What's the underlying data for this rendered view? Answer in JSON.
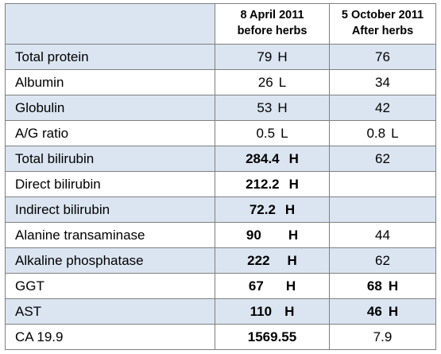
{
  "header": {
    "col1": "",
    "col2_line1": "8 April 2011",
    "col2_line2": "before herbs",
    "col3_line1": "5 October 2011",
    "col3_line2": "After herbs"
  },
  "rows": [
    {
      "label": "Total protein",
      "before": "79",
      "before_flag": "H",
      "after": "76",
      "after_flag": ""
    },
    {
      "label": "Albumin",
      "before": "26",
      "before_flag": "L",
      "after": "34",
      "after_flag": ""
    },
    {
      "label": "Globulin",
      "before": "53",
      "before_flag": "H",
      "after": "42",
      "after_flag": ""
    },
    {
      "label": "A/G ratio",
      "before": "0.5",
      "before_flag": "L",
      "after": "0.8",
      "after_flag": "L"
    },
    {
      "label": "Total bilirubin",
      "before": "284.4",
      "before_flag": "H",
      "after": "62",
      "after_flag": ""
    },
    {
      "label": "Direct bilirubin",
      "before": "212.2",
      "before_flag": "H",
      "after": "",
      "after_flag": ""
    },
    {
      "label": "Indirect bilirubin",
      "before": "72.2",
      "before_flag": "H",
      "after": "",
      "after_flag": ""
    },
    {
      "label": "Alanine transaminase",
      "before": "90",
      "before_flag": "H",
      "after": "44",
      "after_flag": ""
    },
    {
      "label": "Alkaline phosphatase",
      "before": "222",
      "before_flag": "H",
      "after": "62",
      "after_flag": ""
    },
    {
      "label": "GGT",
      "before": "67",
      "before_flag": "H",
      "after": "68",
      "after_flag": "H"
    },
    {
      "label": "AST",
      "before": "110",
      "before_flag": "H",
      "after": "46",
      "after_flag": "H"
    },
    {
      "label": "CA 19.9",
      "before": "1569.55",
      "before_flag": "",
      "after": "7.9",
      "after_flag": ""
    }
  ],
  "colors": {
    "band": "#dbe5f1",
    "border": "#7f7f7f"
  }
}
